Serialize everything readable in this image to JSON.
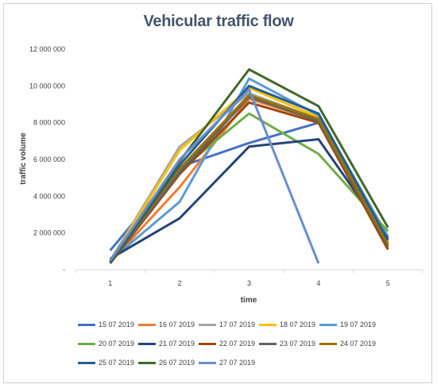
{
  "chart_data": {
    "type": "line",
    "title": "Vehicular traffic flow",
    "xlabel": "time",
    "ylabel": "traffic volume",
    "categories": [
      "1",
      "2",
      "3",
      "4",
      "5"
    ],
    "ylim": [
      0,
      12000000
    ],
    "yticks": [
      "-",
      "2 000 000",
      "4 000 000",
      "6 000 000",
      "8 000 000",
      "10 000 000",
      "12 000 000"
    ],
    "grid": false,
    "legend_position": "bottom",
    "series": [
      {
        "name": "15 07 2019",
        "color": "#4472c4",
        "values": [
          1050000,
          5600000,
          6900000,
          8000000,
          null
        ]
      },
      {
        "name": "16 07 2019",
        "color": "#ed7d31",
        "values": [
          400000,
          4500000,
          9300000,
          8100000,
          1200000
        ]
      },
      {
        "name": "17 07 2019",
        "color": "#a5a5a5",
        "values": [
          500000,
          6700000,
          9600000,
          8200000,
          1400000
        ]
      },
      {
        "name": "18 07 2019",
        "color": "#ffc000",
        "values": [
          450000,
          6500000,
          9900000,
          8300000,
          1500000
        ]
      },
      {
        "name": "19 07 2019",
        "color": "#5b9bd5",
        "values": [
          500000,
          3700000,
          10400000,
          8400000,
          1800000
        ]
      },
      {
        "name": "20 07 2019",
        "color": "#70ad47",
        "values": [
          450000,
          5400000,
          8500000,
          6300000,
          2100000
        ]
      },
      {
        "name": "21 07 2019",
        "color": "#264478",
        "values": [
          600000,
          2800000,
          6700000,
          7100000,
          1700000
        ]
      },
      {
        "name": "22 07 2019",
        "color": "#9e480e",
        "values": [
          350000,
          5200000,
          9100000,
          8000000,
          1100000
        ]
      },
      {
        "name": "23 07 2019",
        "color": "#636363",
        "values": [
          400000,
          5300000,
          9400000,
          8100000,
          1300000
        ]
      },
      {
        "name": "24 07 2019",
        "color": "#997300",
        "values": [
          420000,
          5500000,
          9500000,
          8200000,
          1400000
        ]
      },
      {
        "name": "25 07 2019",
        "color": "#255e91",
        "values": [
          380000,
          5700000,
          10000000,
          8500000,
          1600000
        ]
      },
      {
        "name": "26 07 2019",
        "color": "#43682b",
        "values": [
          420000,
          5900000,
          10900000,
          8900000,
          2300000
        ]
      },
      {
        "name": "27 07 2019",
        "color": "#698ed0",
        "values": [
          500000,
          6000000,
          9800000,
          350000,
          null
        ]
      }
    ]
  }
}
